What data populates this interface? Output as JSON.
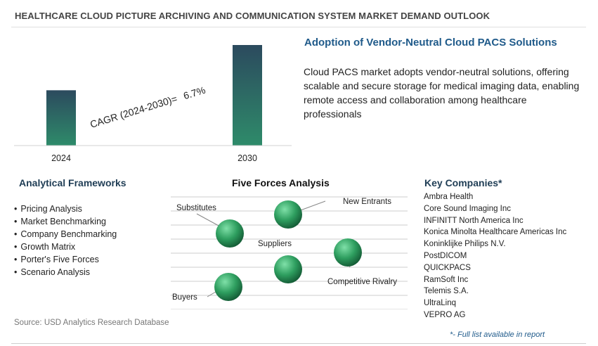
{
  "page": {
    "title": "HEALTHCARE CLOUD PICTURE ARCHIVING AND COMMUNICATION SYSTEM MARKET DEMAND OUTLOOK",
    "source": "Source: USD Analytics Research Database",
    "footnote": "*- Full list available in report"
  },
  "chart_data": {
    "type": "bar",
    "categories": [
      "2024",
      "2030"
    ],
    "values": [
      0.55,
      1.0
    ],
    "value_note_shown": false,
    "annotation": {
      "label": "CAGR (2024-2030)=",
      "value": "6.7%"
    },
    "grid": false,
    "legend": "none",
    "colors": {
      "bar_top": "#2c4a5e",
      "bar_bottom": "#2e8b6a"
    }
  },
  "highlight": {
    "headline": "Adoption of Vendor-Neutral Cloud PACS Solutions",
    "description": "Cloud PACS market adopts vendor-neutral solutions, offering scalable and secure storage for medical imaging data, enabling remote access and collaboration among healthcare professionals"
  },
  "frameworks": {
    "title": "Analytical Frameworks",
    "items": [
      "Pricing Analysis",
      "Market Benchmarking",
      "Company Benchmarking",
      "Growth Matrix",
      "Porter's Five Forces",
      "Scenario Analysis"
    ]
  },
  "five_forces": {
    "title": "Five Forces Analysis",
    "labels": {
      "substitutes": "Substitutes",
      "new_entrants": "New Entrants",
      "suppliers": "Suppliers",
      "competitive_rivalry": "Competitive Rivalry",
      "buyers": "Buyers"
    },
    "colors": {
      "sphere_light": "#7fe0a8",
      "sphere_mid": "#2e9e5f",
      "sphere_dark": "#145c36"
    }
  },
  "companies": {
    "title": "Key Companies*",
    "items": [
      "Ambra Health",
      "Core Sound Imaging Inc",
      "INFINITT North America Inc",
      "Konica Minolta Healthcare Americas Inc",
      "Koninklijke Philips N.V.",
      "PostDICOM",
      "QUICKPACS",
      "RamSoft Inc",
      "Telemis S.A.",
      "UltraLinq",
      "VEPRO AG"
    ]
  }
}
